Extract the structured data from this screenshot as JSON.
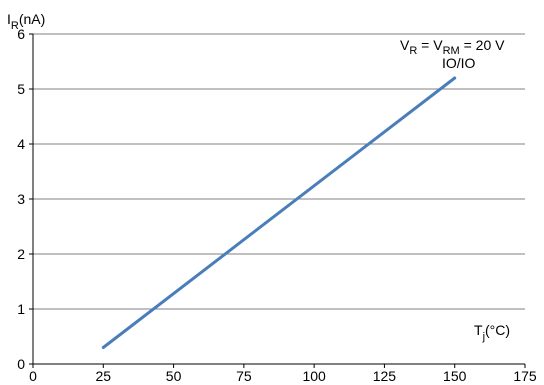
{
  "chart_data": {
    "type": "line",
    "ylabel": {
      "main": "I",
      "sub": "R",
      "unit": "(nA)"
    },
    "xlabel": {
      "main": "T",
      "sub": "j",
      "unit": "(°C)"
    },
    "annotation": {
      "v1": "V",
      "v1_sub": "R",
      "eq1": " = ",
      "v2": "V",
      "v2_sub": "RM",
      "eq2": " = 20 V",
      "line2": "IO/IO"
    },
    "xlim": [
      0,
      175
    ],
    "ylim": [
      0,
      6
    ],
    "xticks": [
      "0",
      "25",
      "50",
      "75",
      "100",
      "125",
      "150",
      "175"
    ],
    "yticks": [
      "0",
      "1",
      "2",
      "3",
      "4",
      "5",
      "6"
    ],
    "grid": "horizontal",
    "series": [
      {
        "color": "#4a7ebb",
        "x": [
          25,
          150
        ],
        "y": [
          0.3,
          5.2
        ]
      }
    ]
  }
}
